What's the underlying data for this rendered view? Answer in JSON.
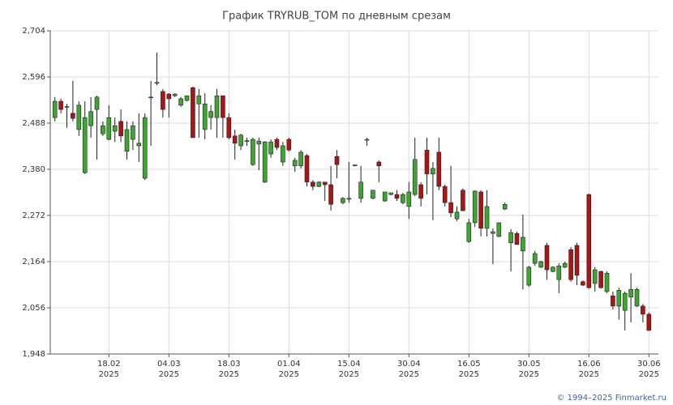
{
  "chart_data": {
    "type": "candlestick",
    "title": "График TRYRUB_TOM по дневным срезам",
    "source": "© 1994–2025 Finmarket.ru",
    "up_color": "#3fa532",
    "down_color": "#a81616",
    "grid": true,
    "ylim": [
      1.948,
      2.704
    ],
    "yticks": [
      {
        "value": 1.948,
        "label": "1,948"
      },
      {
        "value": 2.056,
        "label": "2,056"
      },
      {
        "value": 2.164,
        "label": "2,164"
      },
      {
        "value": 2.272,
        "label": "2,272"
      },
      {
        "value": 2.38,
        "label": "2,380"
      },
      {
        "value": 2.488,
        "label": "2,488"
      },
      {
        "value": 2.596,
        "label": "2,596"
      },
      {
        "value": 2.704,
        "label": "2,704"
      }
    ],
    "categories": [
      null,
      null,
      null,
      null,
      null,
      null,
      null,
      null,
      null,
      [
        "18.02",
        "2025"
      ],
      null,
      null,
      null,
      null,
      null,
      null,
      null,
      null,
      null,
      [
        "04.03",
        "2025"
      ],
      null,
      null,
      null,
      null,
      null,
      null,
      null,
      null,
      null,
      [
        "18.03",
        "2025"
      ],
      null,
      null,
      null,
      null,
      null,
      null,
      null,
      null,
      null,
      [
        "01.04",
        "2025"
      ],
      null,
      null,
      null,
      null,
      null,
      null,
      null,
      null,
      null,
      [
        "15.04",
        "2025"
      ],
      null,
      null,
      null,
      null,
      null,
      null,
      null,
      null,
      null,
      [
        "30.04",
        "2025"
      ],
      null,
      null,
      null,
      null,
      null,
      null,
      null,
      null,
      null,
      [
        "16.05",
        "2025"
      ],
      null,
      null,
      null,
      null,
      null,
      null,
      null,
      null,
      null,
      [
        "30.05",
        "2025"
      ],
      null,
      null,
      null,
      null,
      null,
      null,
      null,
      null,
      null,
      [
        "16.06",
        "2025"
      ],
      null,
      null,
      null,
      null,
      null,
      null,
      null,
      null,
      null,
      [
        "30.06",
        "2025"
      ]
    ],
    "open": [
      2.501,
      2.539,
      2.526,
      2.511,
      2.473,
      2.372,
      2.482,
      2.52,
      2.463,
      2.45,
      2.469,
      2.492,
      2.422,
      2.45,
      2.435,
      2.359,
      2.548,
      2.582,
      2.562,
      2.556,
      2.552,
      2.53,
      2.541,
      2.571,
      2.533,
      2.473,
      2.501,
      2.501,
      2.552,
      2.501,
      2.458,
      2.435,
      2.446,
      2.391,
      2.439,
      2.35,
      2.416,
      2.45,
      2.397,
      2.45,
      2.388,
      2.388,
      2.412,
      2.35,
      2.34,
      2.35,
      2.344,
      2.41,
      2.302,
      2.311,
      2.389,
      2.312,
      2.449,
      2.312,
      2.397,
      2.306,
      2.321,
      2.321,
      2.302,
      2.293,
      2.321,
      2.344,
      2.425,
      2.369,
      2.42,
      2.34,
      2.302,
      2.264,
      2.331,
      2.211,
      2.255,
      2.327,
      2.242,
      2.23,
      2.223,
      2.287,
      2.208,
      2.23,
      2.189,
      2.109,
      2.16,
      2.151,
      2.202,
      2.141,
      2.122,
      2.151,
      2.192,
      2.202,
      2.117,
      2.321,
      2.113,
      2.141,
      2.094,
      2.084,
      2.06,
      2.05,
      2.081,
      2.06,
      2.06,
      2.041
    ],
    "high": [
      2.549,
      2.545,
      2.533,
      2.587,
      2.539,
      2.539,
      2.549,
      2.552,
      2.492,
      2.53,
      2.501,
      2.52,
      2.492,
      2.492,
      2.511,
      2.511,
      2.587,
      2.653,
      2.568,
      2.558,
      2.558,
      2.549,
      2.552,
      2.573,
      2.568,
      2.558,
      2.53,
      2.568,
      2.552,
      2.511,
      2.473,
      2.463,
      2.454,
      2.454,
      2.454,
      2.446,
      2.45,
      2.454,
      2.444,
      2.454,
      2.407,
      2.425,
      2.416,
      2.355,
      2.352,
      2.35,
      2.388,
      2.425,
      2.315,
      2.397,
      2.391,
      2.388,
      2.454,
      2.331,
      2.401,
      2.327,
      2.325,
      2.331,
      2.325,
      2.35,
      2.454,
      2.35,
      2.454,
      2.397,
      2.454,
      2.344,
      2.388,
      2.293,
      2.335,
      2.264,
      2.331,
      2.331,
      2.331,
      2.242,
      2.255,
      2.302,
      2.24,
      2.234,
      2.274,
      2.154,
      2.189,
      2.166,
      2.208,
      2.153,
      2.16,
      2.164,
      2.198,
      2.208,
      2.12,
      2.323,
      2.151,
      2.143,
      2.141,
      2.094,
      2.103,
      2.094,
      2.137,
      2.103,
      2.065,
      2.045
    ],
    "low": [
      2.492,
      2.511,
      2.477,
      2.492,
      2.458,
      2.369,
      2.454,
      2.403,
      2.458,
      2.448,
      2.444,
      2.444,
      2.403,
      2.425,
      2.397,
      2.355,
      2.435,
      2.577,
      2.501,
      2.501,
      2.549,
      2.526,
      2.539,
      2.454,
      2.454,
      2.45,
      2.473,
      2.454,
      2.454,
      2.45,
      2.403,
      2.425,
      2.435,
      2.388,
      2.378,
      2.348,
      2.407,
      2.425,
      2.388,
      2.422,
      2.374,
      2.382,
      2.34,
      2.331,
      2.338,
      2.306,
      2.283,
      2.359,
      2.298,
      2.302,
      2.387,
      2.302,
      2.435,
      2.31,
      2.35,
      2.304,
      2.319,
      2.306,
      2.298,
      2.264,
      2.317,
      2.293,
      2.321,
      2.261,
      2.331,
      2.293,
      2.268,
      2.259,
      2.283,
      2.208,
      2.245,
      2.223,
      2.223,
      2.158,
      2.221,
      2.285,
      2.141,
      2.204,
      2.099,
      2.105,
      2.154,
      2.149,
      2.122,
      2.139,
      2.09,
      2.149,
      2.117,
      2.109,
      2.107,
      2.101,
      2.094,
      2.101,
      2.09,
      2.052,
      2.028,
      2.003,
      2.022,
      2.058,
      2.022,
      2.003
    ],
    "close": [
      2.539,
      2.52,
      2.527,
      2.499,
      2.53,
      2.501,
      2.515,
      2.549,
      2.482,
      2.501,
      2.482,
      2.458,
      2.473,
      2.482,
      2.441,
      2.501,
      2.549,
      2.583,
      2.52,
      2.545,
      2.556,
      2.545,
      2.552,
      2.454,
      2.552,
      2.533,
      2.515,
      2.552,
      2.501,
      2.454,
      2.441,
      2.46,
      2.447,
      2.45,
      2.446,
      2.444,
      2.444,
      2.431,
      2.435,
      2.425,
      2.401,
      2.42,
      2.35,
      2.34,
      2.35,
      2.344,
      2.298,
      2.391,
      2.312,
      2.312,
      2.39,
      2.35,
      2.45,
      2.331,
      2.388,
      2.327,
      2.325,
      2.312,
      2.321,
      2.327,
      2.403,
      2.312,
      2.369,
      2.382,
      2.34,
      2.302,
      2.278,
      2.28,
      2.283,
      2.255,
      2.329,
      2.242,
      2.293,
      2.234,
      2.255,
      2.298,
      2.232,
      2.204,
      2.221,
      2.151,
      2.183,
      2.164,
      2.145,
      2.151,
      2.154,
      2.16,
      2.122,
      2.132,
      2.109,
      2.103,
      2.145,
      2.103,
      2.137,
      2.06,
      2.097,
      2.09,
      2.099,
      2.099,
      2.041,
      2.003
    ]
  }
}
